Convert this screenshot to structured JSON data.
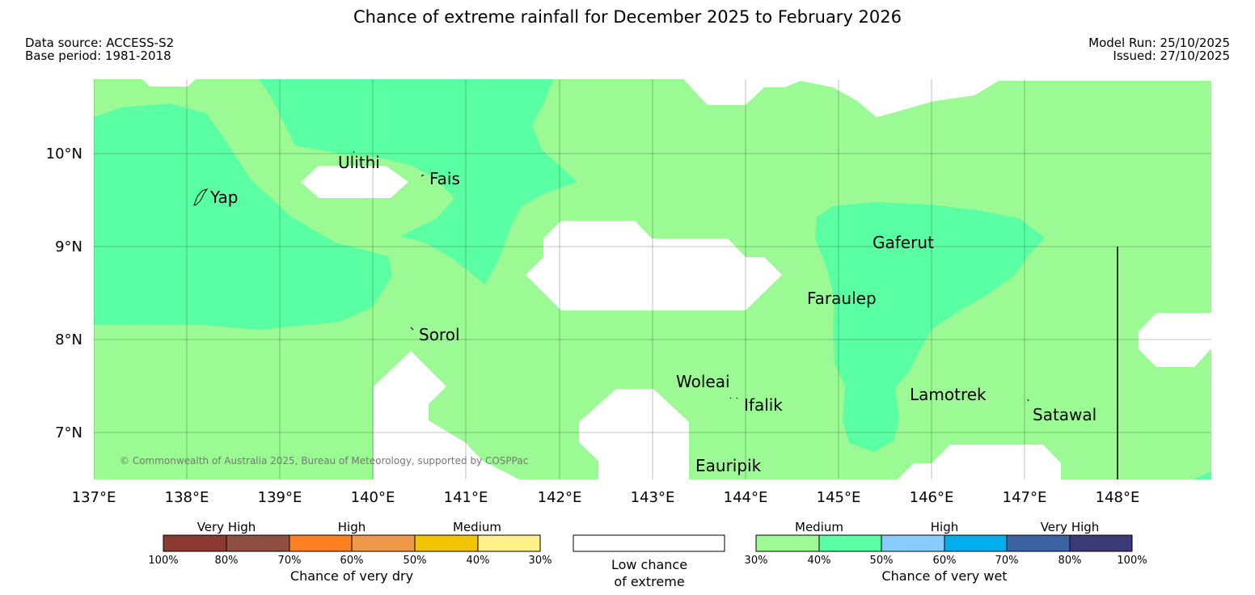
{
  "title": "Chance of extreme rainfall for December 2025 to February 2026",
  "meta": {
    "data_source": "Data source: ACCESS-S2",
    "base_period": "Base period: 1981-2018",
    "model_run": "Model Run: 25/10/2025",
    "issued": "Issued: 27/10/2025"
  },
  "copyright": "© Commonwealth of Australia 2025, Bureau of Meteorology, supported by COSPPac",
  "axes": {
    "x_ticks": [
      "137°E",
      "138°E",
      "139°E",
      "140°E",
      "141°E",
      "142°E",
      "143°E",
      "144°E",
      "145°E",
      "146°E",
      "147°E",
      "148°E"
    ],
    "y_ticks": [
      "10°N",
      "9°N",
      "8°N",
      "7°N"
    ]
  },
  "places": [
    {
      "name": "Yap"
    },
    {
      "name": "Ulithi"
    },
    {
      "name": "Fais"
    },
    {
      "name": "Sorol"
    },
    {
      "name": "Gaferut"
    },
    {
      "name": "Faraulep"
    },
    {
      "name": "Woleai"
    },
    {
      "name": "Ifalik"
    },
    {
      "name": "Lamotrek"
    },
    {
      "name": "Satawal"
    },
    {
      "name": "Eauripik"
    }
  ],
  "legend": {
    "dry": {
      "caption": "Chance of very dry",
      "groups": [
        "Very High",
        "High",
        "Medium"
      ],
      "ticks": [
        "100%",
        "80%",
        "70%",
        "60%",
        "50%",
        "40%",
        "30%"
      ],
      "colors": [
        "#8b3a32",
        "#8f5040",
        "#ff8022",
        "#ef9a4a",
        "#f2c500",
        "#fff08a"
      ]
    },
    "low": {
      "caption_line1": "Low chance",
      "caption_line2": "of extreme",
      "color": "#ffffff"
    },
    "wet": {
      "caption": "Chance of very wet",
      "groups": [
        "Medium",
        "High",
        "Very High"
      ],
      "ticks": [
        "30%",
        "40%",
        "50%",
        "60%",
        "70%",
        "80%",
        "100%"
      ],
      "colors": [
        "#9bfa94",
        "#5affa3",
        "#88ccff",
        "#00aeee",
        "#3b63a4",
        "#3c3a78"
      ]
    }
  },
  "map_colors": {
    "medium_30_40": "#9bfa94",
    "medium_40_50": "#5affa3",
    "low": "#ffffff"
  }
}
